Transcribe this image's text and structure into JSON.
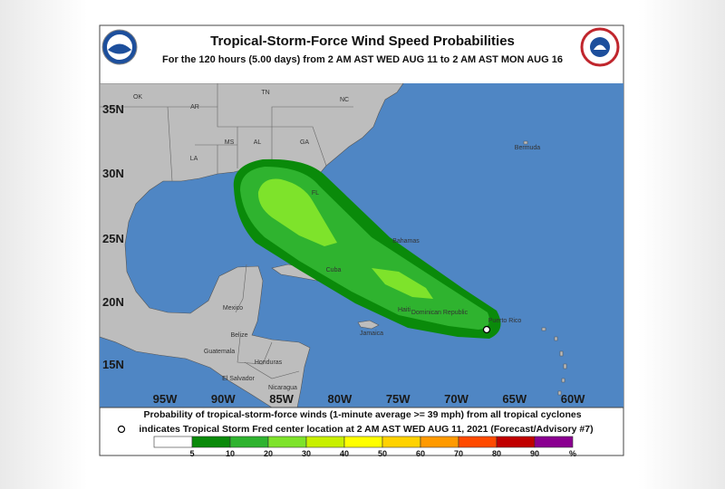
{
  "header": {
    "title": "Tropical-Storm-Force Wind Speed Probabilities",
    "subtitle": "For the 120 hours (5.00 days) from 2 AM AST WED AUG 11 to 2 AM AST MON AUG 16"
  },
  "map": {
    "lat_labels": [
      "35N",
      "30N",
      "25N",
      "20N",
      "15N"
    ],
    "lon_labels": [
      "95W",
      "90W",
      "85W",
      "80W",
      "75W",
      "70W",
      "65W",
      "60W"
    ],
    "places": [
      "OK",
      "AR",
      "TN",
      "NC",
      "MS",
      "AL",
      "GA",
      "LA",
      "FL",
      "Bermuda",
      "Bahamas",
      "Cuba",
      "Mexico",
      "Jamaica",
      "Haiti",
      "Dominican Republic",
      "Puerto Rico",
      "Belize",
      "Guatemala",
      "Honduras",
      "El Salvador",
      "Nicaragua"
    ]
  },
  "footer": {
    "line1": "Probability of tropical-storm-force winds (1-minute average >= 39 mph) from all tropical cyclones",
    "line2": "indicates Tropical Storm Fred center location at 2 AM AST WED AUG 11, 2021 (Forecast/Advisory #7)"
  },
  "legend": {
    "labels": [
      "5",
      "10",
      "20",
      "30",
      "40",
      "50",
      "60",
      "70",
      "80",
      "90",
      "%"
    ],
    "colors": [
      "#ffffff",
      "#0a8a0a",
      "#2fb32f",
      "#7ee32b",
      "#c8f000",
      "#ffff00",
      "#ffd200",
      "#ff9a00",
      "#ff4a00",
      "#c00000",
      "#8a0090"
    ]
  }
}
